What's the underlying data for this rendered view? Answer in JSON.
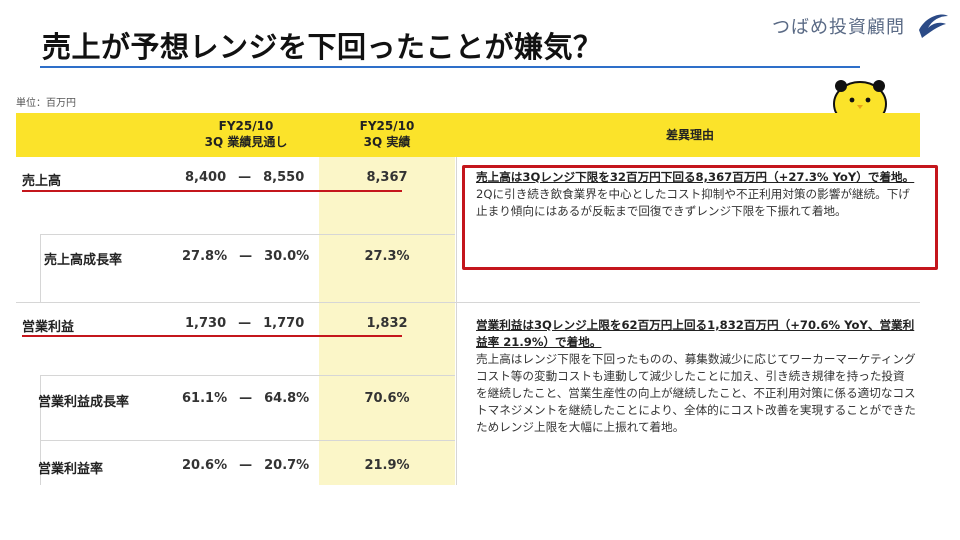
{
  "title": "売上が予想レンジを下回ったことが嫌気？",
  "brand": {
    "name": "つばめ投資顧問",
    "logo": "swallow-logo"
  },
  "unit_note": "単位：百万円",
  "table": {
    "headers": {
      "col_range_line1": "FY25/10",
      "col_range_line2": "3Q 業績見通し",
      "col_actual_line1": "FY25/10",
      "col_actual_line2": "3Q 実績",
      "col_reason": "差異理由"
    },
    "rows": [
      {
        "label": "売上高",
        "low": "8,400",
        "dash": "—",
        "high": "8,550",
        "actual": "8,367"
      },
      {
        "label": "売上高成長率",
        "low": "27.8%",
        "dash": "—",
        "high": "30.0%",
        "actual": "27.3%"
      },
      {
        "label": "営業利益",
        "low": "1,730",
        "dash": "—",
        "high": "1,770",
        "actual": "1,832"
      },
      {
        "label": "営業利益成長率",
        "low": "61.1%",
        "dash": "—",
        "high": "64.8%",
        "actual": "70.6%"
      },
      {
        "label": "営業利益率",
        "low": "20.6%",
        "dash": "—",
        "high": "20.7%",
        "actual": "21.9%"
      }
    ],
    "reasons": {
      "sales_headline": "売上高は3Qレンジ下限を32百万円下回る8,367百万円（+27.3% YoY）で着地。",
      "sales_body": "2Qに引き続き飲食業界を中心としたコスト抑制や不正利用対策の影響が継続。下げ止まり傾向にはあるが反転まで回復できずレンジ下限を下振れて着地。",
      "op_headline": "営業利益は3Qレンジ上限を62百万円上回る1,832百万円（+70.6% YoY、営業利益率 21.9%）で着地。",
      "op_body": "売上高はレンジ下限を下回ったものの、募集数減少に応じてワーカーマーケティングコスト等の変動コストも連動して減少したことに加え、引き続き規律を持った投資を継続したこと、営業生産性の向上が継続したこと、不正利用対策に係る適切なコストマネジメントを継続したことにより、全体的にコスト改善を実現することができたためレンジ上限を大幅に上振れて着地。"
    }
  },
  "colors": {
    "accent_yellow": "#fbe32a",
    "highlight_col": "#fbf6c8",
    "red": "#c4161c",
    "title_line": "#2e6fc9"
  }
}
